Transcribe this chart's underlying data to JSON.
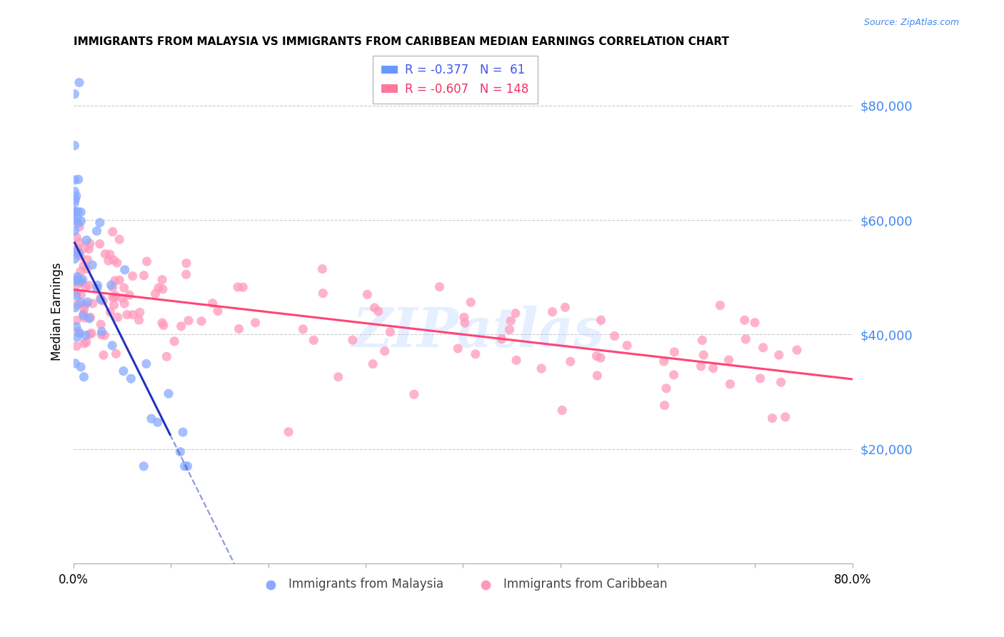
{
  "title": "IMMIGRANTS FROM MALAYSIA VS IMMIGRANTS FROM CARIBBEAN MEDIAN EARNINGS CORRELATION CHART",
  "source": "Source: ZipAtlas.com",
  "ylabel": "Median Earnings",
  "x_range": [
    0.0,
    0.8
  ],
  "y_range": [
    0,
    88000
  ],
  "malaysia_R": -0.377,
  "malaysia_N": 61,
  "caribbean_R": -0.607,
  "caribbean_N": 148,
  "malaysia_color": "#88AAFF",
  "caribbean_color": "#FF99BB",
  "malaysia_line_color": "#2233BB",
  "caribbean_line_color": "#FF4477",
  "right_tick_color": "#4488EE",
  "watermark_text": "ZIPatlas",
  "watermark_color": "#AACCFF",
  "legend_malaysia_color": "#6699FF",
  "legend_caribbean_color": "#FF7799"
}
